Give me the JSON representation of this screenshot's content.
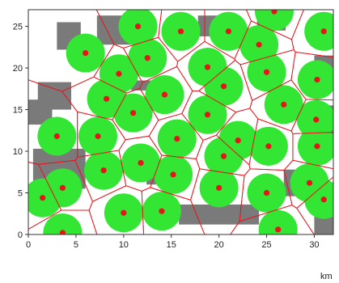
{
  "chart_data": {
    "type": "scatter",
    "title": "",
    "xlabel": "",
    "ylabel": "",
    "x_unit_label": "km",
    "xlim": [
      0,
      32
    ],
    "ylim": [
      0,
      27
    ],
    "x_ticks": [
      {
        "value": 0,
        "label": "0"
      },
      {
        "value": 5,
        "label": "5"
      },
      {
        "value": 10,
        "label": "10"
      },
      {
        "value": 15,
        "label": "15"
      },
      {
        "value": 20,
        "label": "20"
      },
      {
        "value": 25,
        "label": "25"
      },
      {
        "value": 30,
        "label": "30"
      }
    ],
    "y_ticks": [
      {
        "value": 0,
        "label": "0"
      },
      {
        "value": 5,
        "label": "5"
      },
      {
        "value": 10,
        "label": "10"
      },
      {
        "value": 15,
        "label": "15"
      },
      {
        "value": 20,
        "label": "20"
      },
      {
        "value": 25,
        "label": "25"
      }
    ],
    "grid": false,
    "legend": "none",
    "colors": {
      "point": "#e8141c",
      "coverage": "#33e633",
      "cell_edge": "#e8141c",
      "obstacle": "#7a7a7a",
      "axes": "#333333"
    },
    "points": [
      {
        "x": 11.5,
        "y": 25.0
      },
      {
        "x": 16.0,
        "y": 24.4
      },
      {
        "x": 21.0,
        "y": 24.4
      },
      {
        "x": 25.8,
        "y": 26.8
      },
      {
        "x": 31.0,
        "y": 24.4
      },
      {
        "x": 6.0,
        "y": 21.8
      },
      {
        "x": 12.5,
        "y": 21.2
      },
      {
        "x": 18.8,
        "y": 20.1
      },
      {
        "x": 24.2,
        "y": 22.8
      },
      {
        "x": 9.5,
        "y": 19.3
      },
      {
        "x": 20.5,
        "y": 17.8
      },
      {
        "x": 25.0,
        "y": 19.5
      },
      {
        "x": 30.3,
        "y": 18.6
      },
      {
        "x": 8.2,
        "y": 16.3
      },
      {
        "x": 14.3,
        "y": 16.8
      },
      {
        "x": 26.8,
        "y": 15.6
      },
      {
        "x": 30.2,
        "y": 13.8
      },
      {
        "x": 11.0,
        "y": 14.6
      },
      {
        "x": 18.8,
        "y": 14.4
      },
      {
        "x": 3.0,
        "y": 11.8
      },
      {
        "x": 7.3,
        "y": 11.8
      },
      {
        "x": 15.6,
        "y": 11.5
      },
      {
        "x": 22.0,
        "y": 11.3
      },
      {
        "x": 25.2,
        "y": 10.6
      },
      {
        "x": 30.3,
        "y": 10.6
      },
      {
        "x": 7.9,
        "y": 7.7
      },
      {
        "x": 11.8,
        "y": 8.6
      },
      {
        "x": 15.2,
        "y": 7.2
      },
      {
        "x": 20.5,
        "y": 9.4
      },
      {
        "x": 20.0,
        "y": 5.6
      },
      {
        "x": 25.0,
        "y": 5.0
      },
      {
        "x": 29.5,
        "y": 6.2
      },
      {
        "x": 1.5,
        "y": 4.4
      },
      {
        "x": 3.6,
        "y": 5.6
      },
      {
        "x": 10.0,
        "y": 2.6
      },
      {
        "x": 14.0,
        "y": 2.8
      },
      {
        "x": 3.6,
        "y": 0.2
      },
      {
        "x": 26.2,
        "y": 0.6
      },
      {
        "x": 31.0,
        "y": 4.2
      }
    ],
    "obstacles": [
      {
        "x": [
          3.0,
          5.5
        ],
        "y": [
          22.2,
          25.5
        ]
      },
      {
        "x": [
          7.2,
          10.8
        ],
        "y": [
          22.8,
          26.3
        ]
      },
      {
        "x": [
          17.8,
          21.8
        ],
        "y": [
          23.8,
          26.3
        ]
      },
      {
        "x": [
          24.0,
          27.0
        ],
        "y": [
          24.5,
          26.0
        ]
      },
      {
        "x": [
          1.0,
          4.5
        ],
        "y": [
          15.0,
          18.3
        ]
      },
      {
        "x": [
          10.8,
          13.0
        ],
        "y": [
          17.3,
          18.5
        ]
      },
      {
        "x": [
          30.0,
          32.0
        ],
        "y": [
          19.0,
          21.5
        ]
      },
      {
        "x": [
          0.0,
          2.5
        ],
        "y": [
          13.2,
          16.2
        ]
      },
      {
        "x": [
          30.5,
          32.0
        ],
        "y": [
          12.0,
          15.5
        ]
      },
      {
        "x": [
          0.5,
          6.0
        ],
        "y": [
          5.5,
          10.3
        ]
      },
      {
        "x": [
          12.4,
          13.4
        ],
        "y": [
          6.0,
          9.6
        ]
      },
      {
        "x": [
          26.8,
          29.6
        ],
        "y": [
          4.6,
          7.8
        ]
      },
      {
        "x": [
          15.8,
          24.2
        ],
        "y": [
          1.2,
          3.6
        ]
      },
      {
        "x": [
          30.0,
          32.0
        ],
        "y": [
          0.0,
          2.2
        ]
      }
    ]
  }
}
